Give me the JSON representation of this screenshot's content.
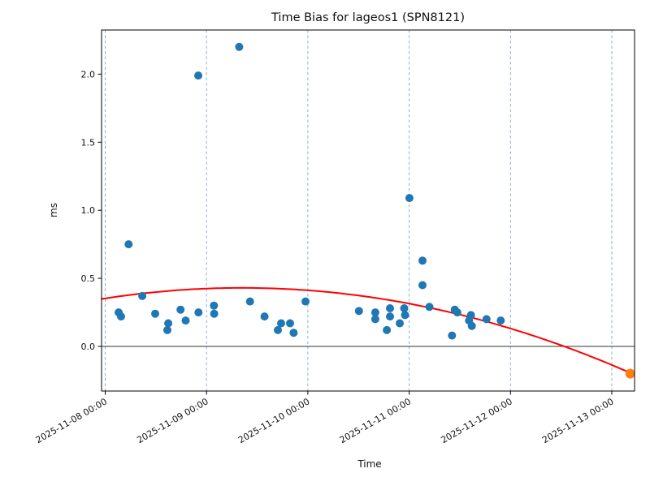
{
  "chart_data": {
    "type": "scatter",
    "title": "Time Bias for lageos1 (SPN8121)",
    "xlabel": "Time",
    "ylabel": "ms",
    "x_tick_labels": [
      "2025-11-08 00:00",
      "2025-11-09 00:00",
      "2025-11-10 00:00",
      "2025-11-11 00:00",
      "2025-11-12 00:00",
      "2025-11-13 00:00"
    ],
    "y_tick_labels": [
      "0.0",
      "0.5",
      "1.0",
      "1.5",
      "2.0"
    ],
    "y_tick_values": [
      0,
      0.5,
      1.0,
      1.5,
      2.0
    ],
    "ylim": [
      -0.33,
      2.32
    ],
    "xlim": [
      "2025-11-07 23:08",
      "2025-11-13 05:22"
    ],
    "grid": {
      "vertical": true,
      "horizontal": false,
      "style": "dashed"
    },
    "zero_line_ms": 0,
    "legend": "none",
    "colors": {
      "observed": "#1f77b4",
      "predicted": "#ff7f0e",
      "trend": "#ff0000",
      "grid": "#7aabd0",
      "zero_line": "#333333",
      "frame": "#000000"
    },
    "series": [
      {
        "name": "observed",
        "marker": "circle",
        "color_key": "observed",
        "points": [
          [
            "2025-11-08 03:10",
            0.25
          ],
          [
            "2025-11-08 03:45",
            0.22
          ],
          [
            "2025-11-08 05:33",
            0.75
          ],
          [
            "2025-11-08 08:46",
            0.37
          ],
          [
            "2025-11-08 11:50",
            0.24
          ],
          [
            "2025-11-08 14:43",
            0.12
          ],
          [
            "2025-11-08 14:56",
            0.17
          ],
          [
            "2025-11-08 17:51",
            0.27
          ],
          [
            "2025-11-08 19:03",
            0.19
          ],
          [
            "2025-11-08 22:02",
            1.99
          ],
          [
            "2025-11-08 22:06",
            0.25
          ],
          [
            "2025-11-09 01:45",
            0.3
          ],
          [
            "2025-11-09 01:49",
            0.24
          ],
          [
            "2025-11-09 07:44",
            2.2
          ],
          [
            "2025-11-09 10:18",
            0.33
          ],
          [
            "2025-11-09 13:45",
            0.22
          ],
          [
            "2025-11-09 16:54",
            0.12
          ],
          [
            "2025-11-09 17:40",
            0.17
          ],
          [
            "2025-11-09 19:47",
            0.17
          ],
          [
            "2025-11-09 20:38",
            0.1
          ],
          [
            "2025-11-09 23:27",
            0.33
          ],
          [
            "2025-11-10 12:06",
            0.26
          ],
          [
            "2025-11-10 15:59",
            0.25
          ],
          [
            "2025-11-10 15:59",
            0.2
          ],
          [
            "2025-11-10 18:42",
            0.12
          ],
          [
            "2025-11-10 19:28",
            0.28
          ],
          [
            "2025-11-10 19:28",
            0.22
          ],
          [
            "2025-11-10 21:46",
            0.17
          ],
          [
            "2025-11-10 22:49",
            0.28
          ],
          [
            "2025-11-10 23:01",
            0.23
          ],
          [
            "2025-11-11 00:04",
            1.09
          ],
          [
            "2025-11-11 03:09",
            0.63
          ],
          [
            "2025-11-11 03:09",
            0.45
          ],
          [
            "2025-11-11 04:48",
            0.29
          ],
          [
            "2025-11-11 10:09",
            0.08
          ],
          [
            "2025-11-11 10:48",
            0.27
          ],
          [
            "2025-11-11 11:25",
            0.25
          ],
          [
            "2025-11-11 14:11",
            0.19
          ],
          [
            "2025-11-11 14:38",
            0.23
          ],
          [
            "2025-11-11 14:50",
            0.15
          ],
          [
            "2025-11-11 18:19",
            0.2
          ],
          [
            "2025-11-11 21:42",
            0.19
          ]
        ]
      },
      {
        "name": "predicted",
        "marker": "circle",
        "color_key": "predicted",
        "points": [
          [
            "2025-11-13 04:22",
            -0.2
          ]
        ]
      }
    ],
    "trend_fit": {
      "shape": "quadratic",
      "vertex_time": "2025-11-09 08:24",
      "vertex_ms": 0.43,
      "curvature_ms_per_day2": -0.0425,
      "start_time": "2025-11-07 23:08",
      "end_time": "2025-11-13 04:22",
      "zero_crossing": "2025-11-12 12:45"
    }
  }
}
